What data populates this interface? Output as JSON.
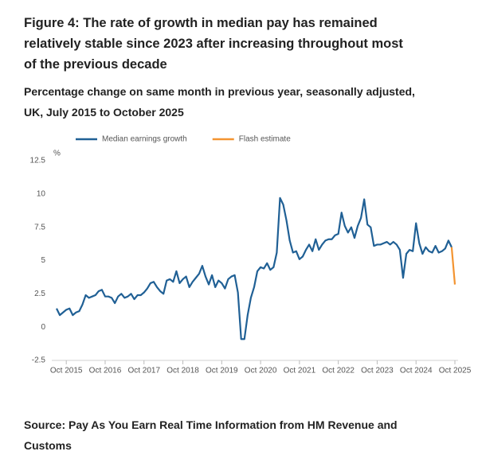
{
  "chart_data": {
    "type": "line",
    "title": "Figure 4: The rate of growth in median pay has remained relatively stable since 2023 after increasing throughout most of the previous decade",
    "subtitle": "Percentage change on same month in previous year, seasonally adjusted, UK, July 2015 to October 2025",
    "y_label": "%",
    "source": "Source: Pay As You Earn Real Time Information from HM Revenue and Customs",
    "categories": [
      null,
      null,
      null,
      "Oct 2015",
      null,
      null,
      null,
      null,
      null,
      null,
      null,
      null,
      null,
      null,
      null,
      "Oct 2016",
      null,
      null,
      null,
      null,
      null,
      null,
      null,
      null,
      null,
      null,
      null,
      "Oct 2017",
      null,
      null,
      null,
      null,
      null,
      null,
      null,
      null,
      null,
      null,
      null,
      "Oct 2018",
      null,
      null,
      null,
      null,
      null,
      null,
      null,
      null,
      null,
      null,
      null,
      "Oct 2019",
      null,
      null,
      null,
      null,
      null,
      null,
      null,
      null,
      null,
      null,
      null,
      "Oct 2020",
      null,
      null,
      null,
      null,
      null,
      null,
      null,
      null,
      null,
      null,
      null,
      "Oct 2021",
      null,
      null,
      null,
      null,
      null,
      null,
      null,
      null,
      null,
      null,
      null,
      "Oct 2022",
      null,
      null,
      null,
      null,
      null,
      null,
      null,
      null,
      null,
      null,
      null,
      "Oct 2023",
      null,
      null,
      null,
      null,
      null,
      null,
      null,
      null,
      null,
      null,
      null,
      "Oct 2024",
      null,
      null,
      null,
      null,
      null,
      null,
      null,
      null,
      null,
      null,
      null,
      "Oct 2025"
    ],
    "series": [
      {
        "name": "Median earnings growth",
        "color": "#206095",
        "values": [
          1.4,
          0.9,
          1.1,
          1.3,
          1.4,
          0.9,
          1.1,
          1.2,
          1.7,
          2.4,
          2.2,
          2.3,
          2.4,
          2.7,
          2.8,
          2.3,
          2.3,
          2.2,
          1.8,
          2.3,
          2.5,
          2.2,
          2.3,
          2.5,
          2.1,
          2.4,
          2.4,
          2.6,
          2.9,
          3.3,
          3.4,
          3.0,
          2.7,
          2.5,
          3.5,
          3.6,
          3.4,
          4.2,
          3.3,
          3.6,
          3.8,
          3.0,
          3.4,
          3.7,
          4.0,
          4.6,
          3.8,
          3.2,
          3.9,
          3.0,
          3.5,
          3.3,
          2.9,
          3.6,
          3.8,
          3.9,
          2.6,
          -0.9,
          -0.9,
          0.9,
          2.2,
          3.0,
          4.2,
          4.5,
          4.4,
          4.8,
          4.3,
          4.5,
          5.6,
          9.7,
          9.2,
          8.0,
          6.5,
          5.6,
          5.7,
          5.1,
          5.3,
          5.8,
          6.2,
          5.7,
          6.6,
          5.8,
          6.2,
          6.5,
          6.6,
          6.6,
          6.9,
          7.0,
          8.6,
          7.6,
          7.1,
          7.5,
          6.7,
          7.6,
          8.2,
          9.6,
          7.7,
          7.5,
          6.1,
          6.2,
          6.2,
          6.3,
          6.4,
          6.2,
          6.4,
          6.2,
          5.8,
          3.7,
          5.5,
          5.8,
          5.7,
          7.8,
          6.3,
          5.5,
          6.0,
          5.7,
          5.6,
          6.1,
          5.6,
          5.7,
          5.9,
          6.5,
          6.0,
          null
        ]
      },
      {
        "name": "Flash estimate",
        "color": "#f39431",
        "values": [
          null,
          null,
          null,
          null,
          null,
          null,
          null,
          null,
          null,
          null,
          null,
          null,
          null,
          null,
          null,
          null,
          null,
          null,
          null,
          null,
          null,
          null,
          null,
          null,
          null,
          null,
          null,
          null,
          null,
          null,
          null,
          null,
          null,
          null,
          null,
          null,
          null,
          null,
          null,
          null,
          null,
          null,
          null,
          null,
          null,
          null,
          null,
          null,
          null,
          null,
          null,
          null,
          null,
          null,
          null,
          null,
          null,
          null,
          null,
          null,
          null,
          null,
          null,
          null,
          null,
          null,
          null,
          null,
          null,
          null,
          null,
          null,
          null,
          null,
          null,
          null,
          null,
          null,
          null,
          null,
          null,
          null,
          null,
          null,
          null,
          null,
          null,
          null,
          null,
          null,
          null,
          null,
          null,
          null,
          null,
          null,
          null,
          null,
          null,
          null,
          null,
          null,
          null,
          null,
          null,
          null,
          null,
          null,
          null,
          null,
          null,
          null,
          null,
          null,
          null,
          null,
          null,
          null,
          null,
          null,
          null,
          null,
          6.0,
          3.2
        ]
      }
    ],
    "ylim": [
      -2.5,
      12.5
    ],
    "yticks": [
      -2.5,
      0,
      2.5,
      5,
      7.5,
      10,
      12.5
    ],
    "grid": false
  }
}
